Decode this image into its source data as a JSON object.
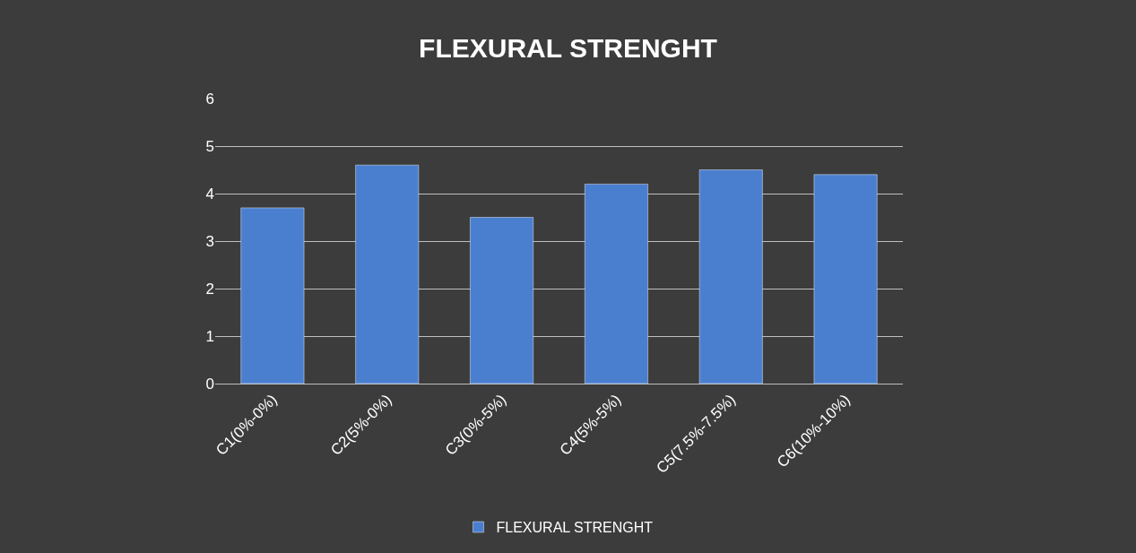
{
  "chart_data": {
    "type": "bar",
    "title": "FLEXURAL STRENGHT",
    "categories": [
      "C1(0%-0%)",
      "C2(5%-0%)",
      "C3(0%-5%)",
      "C4(5%-5%)",
      "C5(7.5%-7.5%)",
      "C6(10%-10%)"
    ],
    "series": [
      {
        "name": "FLEXURAL STRENGHT",
        "color": "#4a7fd0",
        "values": [
          3.7,
          4.6,
          3.5,
          4.2,
          4.5,
          4.4
        ]
      }
    ],
    "ylim": [
      0,
      6
    ],
    "yticks": [
      0,
      1,
      2,
      3,
      4,
      5,
      6
    ],
    "grid": "y",
    "legend": "bottom"
  }
}
